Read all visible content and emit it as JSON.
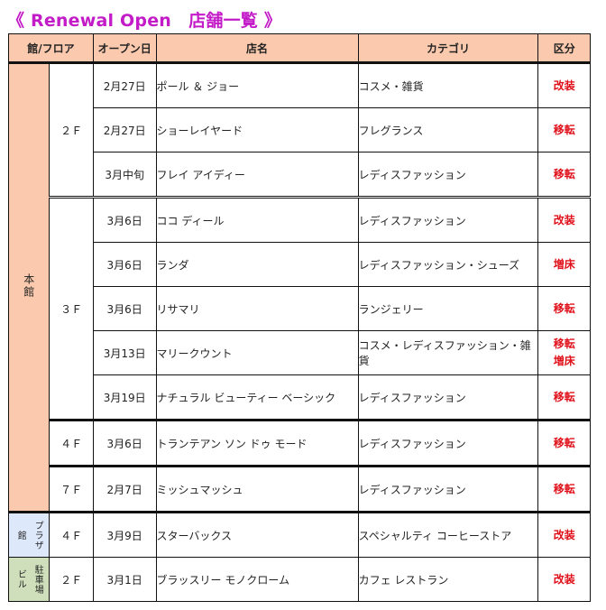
{
  "title": "《 Renewal Open　店舗一覧 》",
  "columns": {
    "building_floor": "館/フロア",
    "open_date": "オープン日",
    "shop_name": "店名",
    "category": "カテゴリ",
    "type": "区分"
  },
  "buildings": {
    "main": "本館",
    "plaza_right": "プラザ",
    "plaza_left": "館",
    "parking_left": "ビル",
    "parking_right": "駐車場"
  },
  "floors": {
    "main_2f": "２Ｆ",
    "main_3f": "３Ｆ",
    "main_4f": "４Ｆ",
    "main_7f": "７Ｆ",
    "plaza_4f": "４Ｆ",
    "parking_2f": "２Ｆ"
  },
  "rows": [
    {
      "date": "2月27日",
      "name": "ポール ＆ ジョー",
      "category": "コスメ・雑貨",
      "type": [
        "改装"
      ]
    },
    {
      "date": "2月27日",
      "name": "ショーレイヤード",
      "category": "フレグランス",
      "type": [
        "移転"
      ]
    },
    {
      "date": "3月中旬",
      "name": "フレイ アイディー",
      "category": "レディスファッション",
      "type": [
        "移転"
      ]
    },
    {
      "date": "3月6日",
      "name": "ココ ディール",
      "category": "レディスファッション",
      "type": [
        "改装"
      ]
    },
    {
      "date": "3月6日",
      "name": "ランダ",
      "category": "レディスファッション・シューズ",
      "type": [
        "増床"
      ]
    },
    {
      "date": "3月6日",
      "name": "リサマリ",
      "category": "ランジェリー",
      "type": [
        "移転"
      ]
    },
    {
      "date": "3月13日",
      "name": "マリークウント",
      "category": "コスメ・レディスファッション・雑貨",
      "type": [
        "移転",
        "増床"
      ]
    },
    {
      "date": "3月19日",
      "name": "ナチュラル ビューティー ベーシック",
      "category": "レディスファッション",
      "type": [
        "移転"
      ]
    },
    {
      "date": "3月6日",
      "name": "トランテアン ソン ドゥ モード",
      "category": "レディスファッション",
      "type": [
        "移転"
      ]
    },
    {
      "date": "2月7日",
      "name": "ミッシュマッシュ",
      "category": "レディスファッション",
      "type": [
        "移転"
      ]
    },
    {
      "date": "3月9日",
      "name": "スターバックス",
      "category": "スペシャルティ コーヒーストア",
      "type": [
        "改装"
      ]
    },
    {
      "date": "3月1日",
      "name": "ブラッスリー モノクローム",
      "category": "カフェ レストラン",
      "type": [
        "改装"
      ]
    }
  ],
  "colors": {
    "title": "#c21bc7",
    "header_bg": "#fbcaae",
    "main_building_bg": "#fbcaae",
    "plaza_bg": "#dde8fb",
    "parking_bg": "#cfdfbb",
    "type_text": "#e0101a"
  }
}
